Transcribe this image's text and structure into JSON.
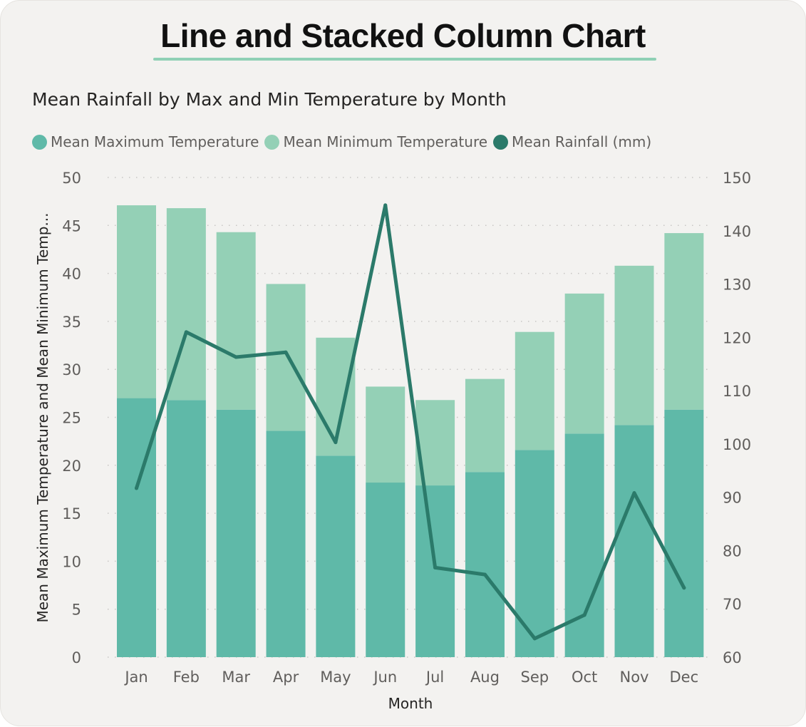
{
  "title": "Line and Stacked Column Chart",
  "colors": {
    "max": "#5fb9a8",
    "min": "#94d0b6",
    "rain": "#2b7a6a",
    "underline": "#8fd0b5"
  },
  "chart_data": {
    "type": "bar",
    "subtype": "stacked column with line",
    "title": "Mean Rainfall by Max and Min Temperature by Month",
    "xlabel": "Month",
    "ylabel": "Mean Maximum Temperature and Mean Minimum Temp...",
    "y2label": "",
    "ylim": [
      0,
      50
    ],
    "y2lim": [
      60,
      150
    ],
    "yticks": [
      0,
      5,
      10,
      15,
      20,
      25,
      30,
      35,
      40,
      45,
      50
    ],
    "y2ticks": [
      60,
      70,
      80,
      90,
      100,
      110,
      120,
      130,
      140,
      150
    ],
    "grid": true,
    "legend_position": "top-left",
    "categories": [
      "Jan",
      "Feb",
      "Mar",
      "Apr",
      "May",
      "Jun",
      "Jul",
      "Aug",
      "Sep",
      "Oct",
      "Nov",
      "Dec"
    ],
    "series": [
      {
        "name": "Mean Maximum Temperature",
        "type": "bar",
        "axis": "left",
        "values": [
          27.0,
          26.8,
          25.8,
          23.6,
          21.0,
          18.2,
          17.9,
          19.3,
          21.6,
          23.3,
          24.2,
          25.8
        ]
      },
      {
        "name": "Mean Minimum Temperature",
        "type": "bar",
        "axis": "left",
        "values": [
          20.1,
          20.0,
          18.5,
          15.3,
          12.3,
          10.0,
          8.9,
          9.7,
          12.3,
          14.6,
          16.6,
          18.4
        ]
      },
      {
        "name": "Mean Rainfall (mm)",
        "type": "line",
        "axis": "right",
        "values": [
          91.7,
          121.0,
          116.3,
          117.2,
          100.3,
          144.8,
          76.8,
          75.5,
          63.5,
          67.9,
          90.8,
          73.0
        ]
      }
    ]
  }
}
